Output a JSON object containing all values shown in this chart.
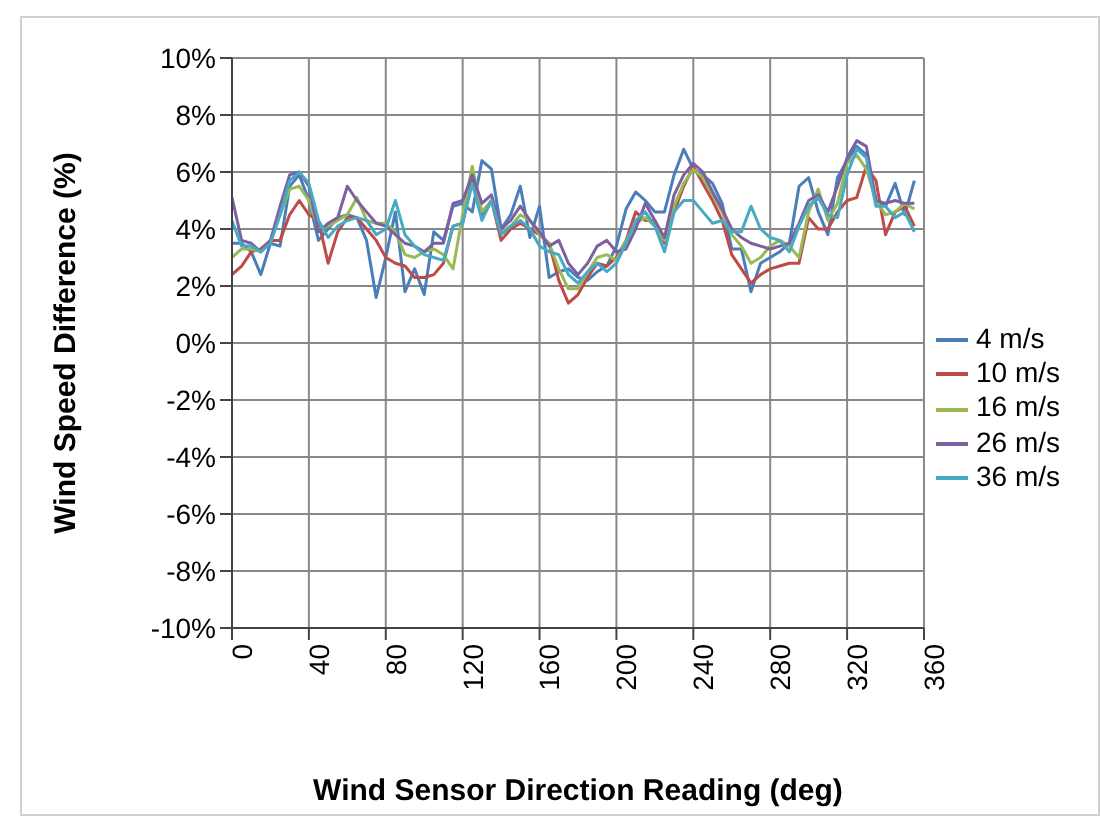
{
  "chart_data": {
    "type": "line",
    "xlabel": "Wind Sensor Direction Reading (deg)",
    "ylabel": "Wind Speed Difference (%)",
    "x": [
      0,
      5,
      10,
      15,
      20,
      25,
      30,
      35,
      40,
      45,
      50,
      55,
      60,
      65,
      70,
      75,
      80,
      85,
      90,
      95,
      100,
      105,
      110,
      115,
      120,
      125,
      130,
      135,
      140,
      145,
      150,
      155,
      160,
      165,
      170,
      175,
      180,
      185,
      190,
      195,
      200,
      205,
      210,
      215,
      220,
      225,
      230,
      235,
      240,
      245,
      250,
      255,
      260,
      265,
      270,
      275,
      280,
      285,
      290,
      295,
      300,
      305,
      310,
      315,
      320,
      325,
      330,
      335,
      340,
      345,
      350,
      355
    ],
    "series": [
      {
        "name": "4 m/s",
        "color": "#4a7ebb",
        "values": [
          3.5,
          3.5,
          3.2,
          2.4,
          3.5,
          3.4,
          5.5,
          5.9,
          5.0,
          3.6,
          4.0,
          4.4,
          4.5,
          4.4,
          3.6,
          1.6,
          3.0,
          4.6,
          1.8,
          2.6,
          1.7,
          3.9,
          3.6,
          4.8,
          4.9,
          4.6,
          6.4,
          6.1,
          4.0,
          4.5,
          5.5,
          3.7,
          4.8,
          2.3,
          2.5,
          2.6,
          2.3,
          2.2,
          2.5,
          2.7,
          3.4,
          4.7,
          5.3,
          5.0,
          4.6,
          4.6,
          5.9,
          6.8,
          6.1,
          5.9,
          5.6,
          4.9,
          3.3,
          3.3,
          1.8,
          2.8,
          3.0,
          3.2,
          3.5,
          5.5,
          5.8,
          4.6,
          3.8,
          5.8,
          6.4,
          6.9,
          6.6,
          5.0,
          4.8,
          5.6,
          4.5,
          5.7
        ]
      },
      {
        "name": "10 m/s",
        "color": "#be4b48",
        "values": [
          2.4,
          2.7,
          3.2,
          3.3,
          3.6,
          3.6,
          4.5,
          5.0,
          4.5,
          4.3,
          2.8,
          3.9,
          4.4,
          4.4,
          4.0,
          3.6,
          3.0,
          2.8,
          2.7,
          2.3,
          2.3,
          2.4,
          2.8,
          4.1,
          4.2,
          5.8,
          4.5,
          5.0,
          3.6,
          4.0,
          4.2,
          4.0,
          3.8,
          3.5,
          2.2,
          1.4,
          1.7,
          2.3,
          2.8,
          2.7,
          3.0,
          3.6,
          4.6,
          4.3,
          4.3,
          3.5,
          4.6,
          5.5,
          6.2,
          5.6,
          5.0,
          4.3,
          3.1,
          2.6,
          2.1,
          2.4,
          2.6,
          2.7,
          2.8,
          2.8,
          4.4,
          4.0,
          4.0,
          4.6,
          5.0,
          5.1,
          6.2,
          5.7,
          3.8,
          4.6,
          4.8,
          4.1
        ]
      },
      {
        "name": "16 m/s",
        "color": "#98b954",
        "values": [
          3.0,
          3.3,
          3.3,
          3.2,
          3.6,
          4.5,
          5.4,
          5.5,
          5.0,
          4.0,
          4.1,
          4.3,
          4.5,
          5.1,
          4.3,
          4.2,
          4.2,
          3.9,
          3.1,
          3.0,
          3.2,
          3.3,
          3.1,
          2.6,
          4.5,
          6.2,
          4.6,
          5.0,
          3.9,
          4.1,
          4.5,
          4.3,
          3.8,
          3.5,
          2.6,
          1.9,
          1.9,
          2.5,
          3.0,
          3.1,
          2.9,
          3.6,
          4.2,
          4.4,
          4.1,
          3.6,
          4.8,
          5.6,
          6.1,
          5.8,
          5.2,
          4.6,
          3.8,
          3.4,
          2.8,
          3.0,
          3.4,
          3.6,
          3.4,
          3.0,
          4.6,
          5.4,
          4.3,
          4.9,
          6.3,
          6.6,
          6.1,
          5.0,
          4.5,
          4.6,
          4.9,
          4.7
        ]
      },
      {
        "name": "26 m/s",
        "color": "#7d60a0",
        "values": [
          5.1,
          3.6,
          3.5,
          3.2,
          3.6,
          4.8,
          5.9,
          6.0,
          5.5,
          3.9,
          4.2,
          4.4,
          5.5,
          5.0,
          4.6,
          4.2,
          4.1,
          3.8,
          3.5,
          3.4,
          3.2,
          3.5,
          3.5,
          4.9,
          5.0,
          5.9,
          4.9,
          5.2,
          4.0,
          4.3,
          4.8,
          4.3,
          3.9,
          3.4,
          3.6,
          2.8,
          2.4,
          2.8,
          3.4,
          3.6,
          3.2,
          3.3,
          4.0,
          4.9,
          4.3,
          3.7,
          5.2,
          5.9,
          6.3,
          6.0,
          5.3,
          4.7,
          4.0,
          3.7,
          3.5,
          3.4,
          3.3,
          3.4,
          3.5,
          4.2,
          5.0,
          5.2,
          4.6,
          5.5,
          6.5,
          7.1,
          6.9,
          5.0,
          4.9,
          5.0,
          4.9,
          4.9
        ]
      },
      {
        "name": "36 m/s",
        "color": "#46aac5",
        "values": [
          4.3,
          3.4,
          3.4,
          3.2,
          3.5,
          4.5,
          5.7,
          6.0,
          5.6,
          4.3,
          3.7,
          4.1,
          4.3,
          4.4,
          4.3,
          3.8,
          4.0,
          5.0,
          3.8,
          3.4,
          3.1,
          3.0,
          2.9,
          4.1,
          4.2,
          5.6,
          4.3,
          5.0,
          3.8,
          4.1,
          4.3,
          4.0,
          3.4,
          3.2,
          3.1,
          2.4,
          2.1,
          2.5,
          2.8,
          2.5,
          2.8,
          3.5,
          4.3,
          4.6,
          4.1,
          3.2,
          4.6,
          5.0,
          5.0,
          4.6,
          4.2,
          4.3,
          3.9,
          3.9,
          4.8,
          4.0,
          3.7,
          3.6,
          3.2,
          4.1,
          4.8,
          5.1,
          4.5,
          4.4,
          5.9,
          6.8,
          6.5,
          4.8,
          4.8,
          4.4,
          4.6,
          3.9
        ]
      }
    ],
    "xlim": [
      0,
      360
    ],
    "xticks": [
      0,
      40,
      80,
      120,
      160,
      200,
      240,
      280,
      320,
      360
    ],
    "ylim": [
      -10,
      10
    ],
    "yticks": [
      {
        "value": -10,
        "label": "-10%"
      },
      {
        "value": -8,
        "label": "-8%"
      },
      {
        "value": -6,
        "label": "-6%"
      },
      {
        "value": -4,
        "label": "-4%"
      },
      {
        "value": -2,
        "label": "-2%"
      },
      {
        "value": 0,
        "label": "0%"
      },
      {
        "value": 2,
        "label": "2%"
      },
      {
        "value": 4,
        "label": "4%"
      },
      {
        "value": 6,
        "label": "6%"
      },
      {
        "value": 8,
        "label": "8%"
      },
      {
        "value": 10,
        "label": "10%"
      }
    ],
    "grid": true,
    "legend": "right",
    "marker": "none",
    "line_style": "solid"
  }
}
